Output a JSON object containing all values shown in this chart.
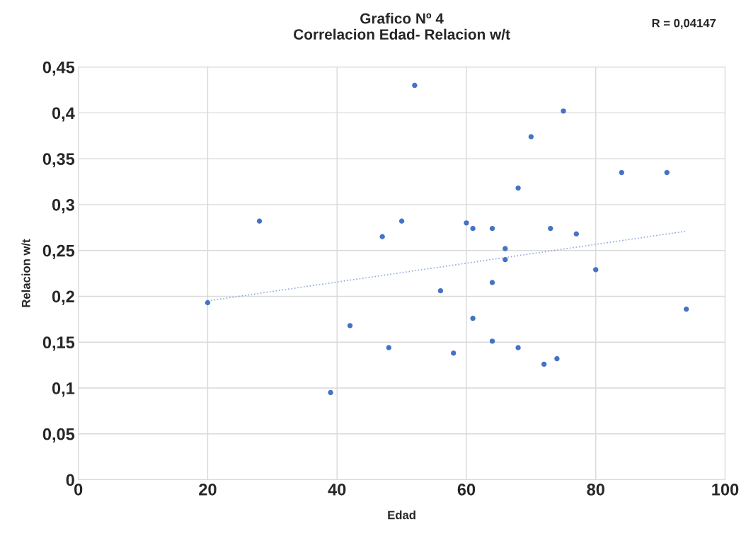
{
  "chart_data": {
    "type": "scatter",
    "title": "Grafico Nº 4\nCorrelacion Edad- Relacion w/t",
    "xlabel": "Edad",
    "ylabel": "Relacion w/t",
    "annotations": [
      "R = 0,04147"
    ],
    "xlim": [
      0,
      100
    ],
    "xticks": [
      0,
      20,
      40,
      60,
      80,
      100
    ],
    "ylim": [
      0,
      0.45
    ],
    "yticks": [
      {
        "value": 0,
        "label": "0"
      },
      {
        "value": 0.05,
        "label": "0,05"
      },
      {
        "value": 0.1,
        "label": "0,1"
      },
      {
        "value": 0.15,
        "label": "0,15"
      },
      {
        "value": 0.2,
        "label": "0,2"
      },
      {
        "value": 0.25,
        "label": "0,25"
      },
      {
        "value": 0.3,
        "label": "0,3"
      },
      {
        "value": 0.35,
        "label": "0,35"
      },
      {
        "value": 0.4,
        "label": "0,4"
      },
      {
        "value": 0.45,
        "label": "0,45"
      }
    ],
    "grid": true,
    "legend": false,
    "marker": "circle",
    "series": [
      {
        "color": "#4472c4",
        "x": [
          20,
          28,
          39,
          42,
          47,
          50,
          48,
          52,
          56,
          58,
          60,
          61,
          61,
          64,
          64,
          64,
          66,
          66,
          68,
          68,
          70,
          72,
          73,
          74,
          75,
          77,
          80,
          84,
          91,
          94
        ],
        "values": [
          0.193,
          0.282,
          0.095,
          0.168,
          0.265,
          0.282,
          0.144,
          0.43,
          0.206,
          0.138,
          0.28,
          0.274,
          0.176,
          0.274,
          0.215,
          0.151,
          0.252,
          0.24,
          0.318,
          0.144,
          0.374,
          0.126,
          0.274,
          0.132,
          0.402,
          0.268,
          0.229,
          0.335,
          0.335,
          0.186
        ]
      },
      {
        "type": "line",
        "color": "#8eaadb",
        "line_style": "dotted",
        "marker": "none",
        "x": [
          20,
          94
        ],
        "values": [
          0.195,
          0.271
        ]
      }
    ]
  }
}
